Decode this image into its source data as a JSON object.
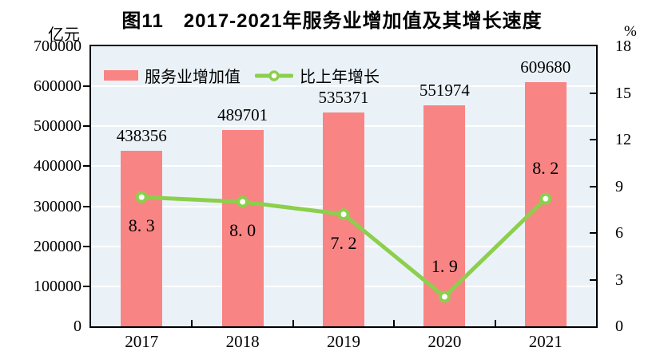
{
  "chart_data": {
    "type": "bar+line",
    "title": "图11　2017-2021年服务业增加值及其增长速度",
    "categories": [
      "2017",
      "2018",
      "2019",
      "2020",
      "2021"
    ],
    "series": [
      {
        "name": "服务业增加值",
        "type": "bar",
        "axis": "left",
        "color": "#f98484",
        "values": [
          438356,
          489701,
          535371,
          551974,
          609680
        ],
        "labels": [
          "438356",
          "489701",
          "535371",
          "551974",
          "609680"
        ]
      },
      {
        "name": "比上年增长",
        "type": "line",
        "axis": "right",
        "color": "#8ccf4c",
        "marker_fill": "#ffffff",
        "values": [
          8.3,
          8.0,
          7.2,
          1.9,
          8.2
        ],
        "labels": [
          "8. 3",
          "8. 0",
          "7. 2",
          "1. 9",
          "8. 2"
        ],
        "label_positions": [
          "below",
          "below",
          "below",
          "above",
          "above"
        ]
      }
    ],
    "left_axis": {
      "unit": "亿元",
      "min": 0,
      "max": 700000,
      "step": 100000,
      "tick_labels": [
        "700000",
        "600000",
        "500000",
        "400000",
        "300000",
        "200000",
        "100000",
        "0"
      ]
    },
    "right_axis": {
      "unit": "%",
      "min": 0,
      "max": 18,
      "step": 3,
      "tick_labels": [
        "18",
        "15",
        "12",
        "9",
        "6",
        "3",
        "0"
      ]
    },
    "legend": {
      "position": "top-left-inside"
    },
    "plot": {
      "bg_color": "#eaf2f8",
      "grid_color": "#ffffff",
      "border_color": "#000000",
      "grid": "horizontal"
    }
  }
}
